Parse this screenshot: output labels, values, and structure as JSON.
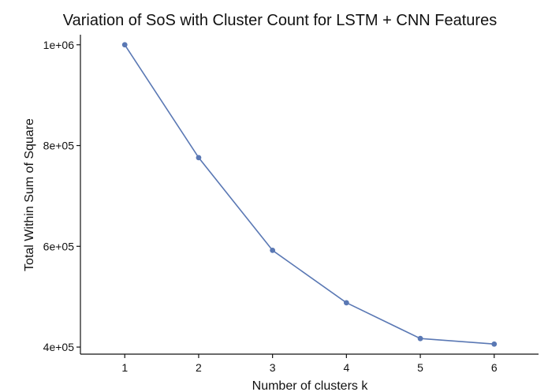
{
  "chart_data": {
    "type": "line",
    "title": "Variation of SoS with Cluster Count for LSTM + CNN Features",
    "xlabel": "Number of clusters k",
    "ylabel": "Total Within Sum of Square",
    "x": [
      1,
      2,
      3,
      4,
      5,
      6
    ],
    "series": [
      {
        "values": [
          1000000,
          776000,
          592000,
          488000,
          417000,
          406000
        ]
      }
    ],
    "xlim": [
      0.4,
      6.6
    ],
    "ylim": [
      386000,
      1020000
    ],
    "x_ticks": [
      1,
      2,
      3,
      4,
      5,
      6
    ],
    "x_tick_labels": [
      "1",
      "2",
      "3",
      "4",
      "5",
      "6"
    ],
    "y_ticks": [
      400000,
      600000,
      800000,
      1000000
    ],
    "y_tick_labels": [
      "4e+05",
      "6e+05",
      "8e+05",
      "1e+06"
    ],
    "grid": false,
    "legend": "none",
    "series_color": "#5a78b4",
    "axis_color": "#111111"
  }
}
